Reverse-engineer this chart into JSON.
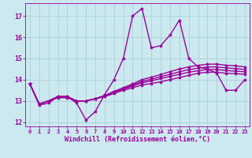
{
  "title": "",
  "xlabel": "Windchill (Refroidissement éolien,°C)",
  "ylabel": "",
  "xlim": [
    -0.5,
    23.5
  ],
  "ylim": [
    11.8,
    17.6
  ],
  "yticks": [
    12,
    13,
    14,
    15,
    16,
    17
  ],
  "xticks": [
    0,
    1,
    2,
    3,
    4,
    5,
    6,
    7,
    8,
    9,
    10,
    11,
    12,
    13,
    14,
    15,
    16,
    17,
    18,
    19,
    20,
    21,
    22,
    23
  ],
  "bg_color": "#cce9f0",
  "grid_color": "#aacfd8",
  "line_color": "#990099",
  "line_width": 1.0,
  "marker": "*",
  "marker_size": 3,
  "series": [
    [
      13.8,
      12.8,
      12.9,
      13.2,
      13.2,
      12.9,
      12.1,
      12.5,
      13.3,
      14.0,
      15.0,
      17.0,
      17.35,
      15.5,
      15.6,
      16.1,
      16.8,
      15.0,
      14.6,
      14.5,
      14.3,
      13.5,
      13.5,
      14.0
    ],
    [
      13.8,
      12.85,
      13.0,
      13.15,
      13.15,
      13.0,
      13.0,
      13.1,
      13.2,
      13.35,
      13.5,
      13.62,
      13.75,
      13.82,
      13.9,
      14.0,
      14.1,
      14.2,
      14.3,
      14.35,
      14.35,
      14.3,
      14.28,
      14.25
    ],
    [
      13.8,
      12.85,
      13.0,
      13.2,
      13.2,
      13.0,
      13.0,
      13.1,
      13.25,
      13.4,
      13.55,
      13.7,
      13.85,
      13.95,
      14.05,
      14.15,
      14.25,
      14.35,
      14.42,
      14.48,
      14.48,
      14.43,
      14.4,
      14.37
    ],
    [
      13.8,
      12.85,
      13.0,
      13.2,
      13.2,
      13.0,
      13.0,
      13.1,
      13.25,
      13.42,
      13.58,
      13.75,
      13.92,
      14.02,
      14.14,
      14.25,
      14.37,
      14.47,
      14.54,
      14.6,
      14.6,
      14.55,
      14.52,
      14.48
    ],
    [
      13.8,
      12.85,
      13.0,
      13.2,
      13.2,
      13.0,
      13.0,
      13.1,
      13.25,
      13.45,
      13.62,
      13.8,
      14.0,
      14.12,
      14.24,
      14.38,
      14.5,
      14.6,
      14.67,
      14.73,
      14.73,
      14.68,
      14.65,
      14.6
    ]
  ]
}
